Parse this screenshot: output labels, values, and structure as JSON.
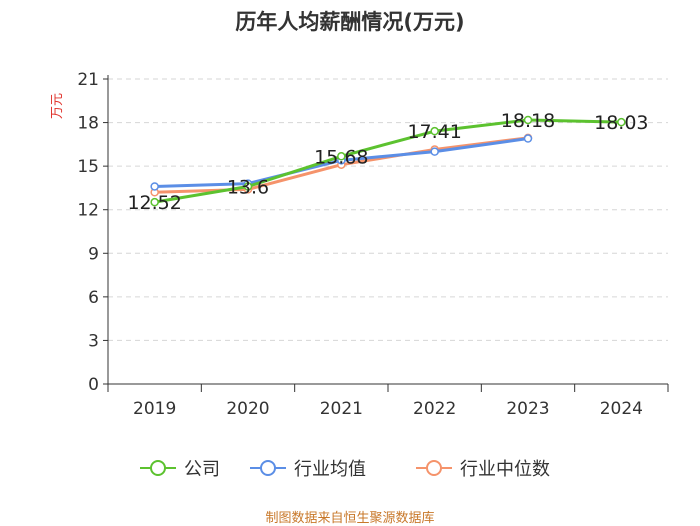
{
  "chart_data": {
    "type": "line",
    "title": "历年人均薪酬情况(万元)",
    "ylabel": "万元",
    "xlabel": "",
    "categories": [
      "2019",
      "2020",
      "2021",
      "2022",
      "2023",
      "2024"
    ],
    "ylim": [
      0,
      21
    ],
    "yticks": [
      0,
      3,
      6,
      9,
      12,
      15,
      18,
      21
    ],
    "grid": true,
    "legend_position": "bottom",
    "series": [
      {
        "name": "公司",
        "color": "#5cc22f",
        "values": [
          12.52,
          13.6,
          15.68,
          17.41,
          18.18,
          18.03
        ],
        "labels": [
          "12.52",
          "13.6",
          "15.68",
          "17.41",
          "18.18",
          "18.03"
        ]
      },
      {
        "name": "行业均值",
        "color": "#5b8ee6",
        "values": [
          13.6,
          13.8,
          15.4,
          16.0,
          16.9,
          null
        ]
      },
      {
        "name": "行业中位数",
        "color": "#f5936b",
        "values": [
          13.2,
          13.4,
          15.1,
          16.15,
          16.95,
          null
        ]
      }
    ]
  },
  "footer": {
    "source": "制图数据来自恒生聚源数据库"
  }
}
